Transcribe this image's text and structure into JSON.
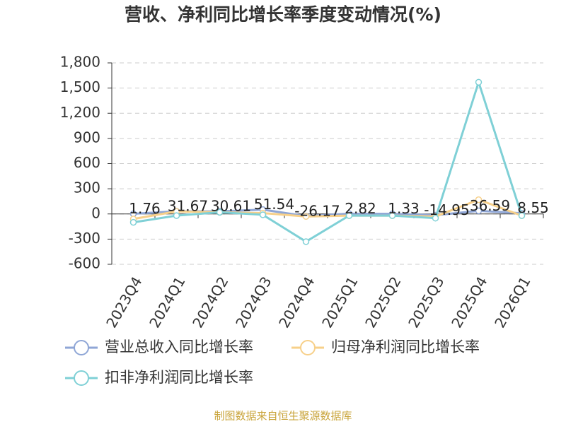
{
  "chart_data": {
    "type": "line",
    "title": "营收、净利同比增长率季度变动情况(%)",
    "categories": [
      "2023Q4",
      "2024Q1",
      "2024Q2",
      "2024Q3",
      "2024Q4",
      "2025Q1",
      "2025Q2",
      "2025Q3",
      "2025Q4",
      "2026Q1"
    ],
    "series": [
      {
        "name": "营业总收入同比增长率",
        "color": "#8fa6d6",
        "values": [
          1.76,
          31.67,
          30.61,
          51.54,
          -26.17,
          2.82,
          1.33,
          -14.95,
          36.59,
          8.55
        ]
      },
      {
        "name": "归母净利润同比增长率",
        "color": "#f7d08a",
        "values": [
          -60,
          30,
          20,
          10,
          -30,
          -20,
          -20,
          -30,
          170,
          -20
        ]
      },
      {
        "name": "扣非净利润同比增长率",
        "color": "#7fd0d6",
        "values": [
          -100,
          -20,
          20,
          -10,
          -330,
          -20,
          -20,
          -50,
          1570,
          -20
        ]
      }
    ],
    "ylim": [
      -600,
      1800
    ],
    "yticks": [
      -600,
      -300,
      0,
      300,
      600,
      900,
      {
        "value": 1200,
        "label": "1,200"
      },
      {
        "value": 1500,
        "label": "1,500"
      },
      {
        "value": 1800,
        "label": "1,800"
      }
    ],
    "grid": true,
    "source": "制图数据来自恒生聚源数据库"
  }
}
